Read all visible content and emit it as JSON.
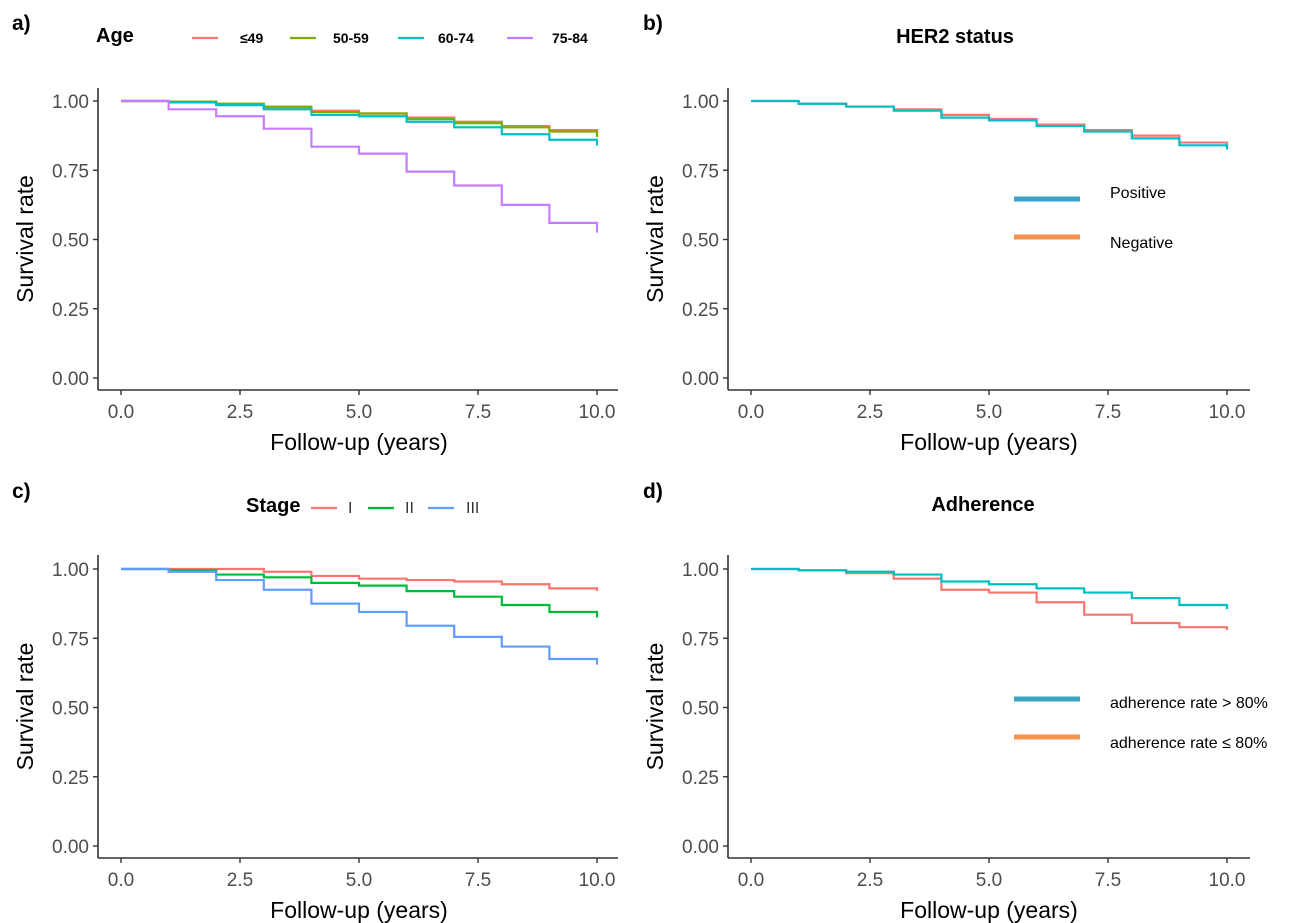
{
  "chart_data": [
    {
      "id": "a",
      "type": "line",
      "step": true,
      "panel_label": "a)",
      "title": "Age",
      "xlabel": "Follow-up (years)",
      "ylabel": "Survival rate",
      "xlim": [
        0,
        10
      ],
      "ylim": [
        0,
        1
      ],
      "xticks": [
        "0.0",
        "2.5",
        "5.0",
        "7.5",
        "10.0"
      ],
      "yticks": [
        "0.00",
        "0.25",
        "0.50",
        "0.75",
        "1.00"
      ],
      "grid": false,
      "legend_position": "top",
      "legend_style": "inline",
      "x": [
        0,
        1,
        2,
        3,
        4,
        5,
        6,
        7,
        8,
        9,
        10
      ],
      "series": [
        {
          "name": "≤49",
          "color": "#F8766D",
          "values": [
            1.0,
            0.995,
            0.99,
            0.98,
            0.965,
            0.955,
            0.94,
            0.925,
            0.91,
            0.895,
            0.88
          ]
        },
        {
          "name": "50-59",
          "color": "#7CAE00",
          "values": [
            1.0,
            0.998,
            0.99,
            0.978,
            0.96,
            0.955,
            0.935,
            0.92,
            0.905,
            0.89,
            0.87
          ]
        },
        {
          "name": "60-74",
          "color": "#00BFC4",
          "values": [
            1.0,
            0.995,
            0.985,
            0.97,
            0.95,
            0.945,
            0.925,
            0.905,
            0.88,
            0.86,
            0.84
          ]
        },
        {
          "name": "75-84",
          "color": "#C77CFF",
          "values": [
            1.0,
            0.97,
            0.945,
            0.9,
            0.835,
            0.81,
            0.745,
            0.695,
            0.625,
            0.56,
            0.525
          ]
        }
      ]
    },
    {
      "id": "b",
      "type": "line",
      "step": true,
      "panel_label": "b)",
      "title": "HER2 status",
      "xlabel": "Follow-up (years)",
      "ylabel": "Survival rate",
      "xlim": [
        0,
        10
      ],
      "ylim": [
        0,
        1
      ],
      "xticks": [
        "0.0",
        "2.5",
        "5.0",
        "7.5",
        "10.0"
      ],
      "yticks": [
        "0.00",
        "0.25",
        "0.50",
        "0.75",
        "1.00"
      ],
      "grid": false,
      "legend_position": "right",
      "legend_style": "block",
      "legend": [
        {
          "name": "Positive",
          "color": "#3BA3C3"
        },
        {
          "name": "Negative",
          "color": "#F4934B"
        }
      ],
      "x": [
        0,
        1,
        2,
        3,
        4,
        5,
        6,
        7,
        8,
        9,
        10
      ],
      "series": [
        {
          "name": "Negative",
          "color": "#F8766D",
          "values": [
            1.0,
            0.99,
            0.98,
            0.97,
            0.95,
            0.935,
            0.915,
            0.895,
            0.875,
            0.85,
            0.83
          ]
        },
        {
          "name": "Positive",
          "color": "#00BFC4",
          "values": [
            1.0,
            0.99,
            0.98,
            0.965,
            0.94,
            0.93,
            0.91,
            0.89,
            0.865,
            0.84,
            0.825
          ]
        }
      ]
    },
    {
      "id": "c",
      "type": "line",
      "step": true,
      "panel_label": "c)",
      "title": "Stage",
      "xlabel": "Follow-up (years)",
      "ylabel": "Survival rate",
      "xlim": [
        0,
        10
      ],
      "ylim": [
        0,
        1
      ],
      "xticks": [
        "0.0",
        "2.5",
        "5.0",
        "7.5",
        "10.0"
      ],
      "yticks": [
        "0.00",
        "0.25",
        "0.50",
        "0.75",
        "1.00"
      ],
      "grid": false,
      "legend_position": "top",
      "legend_style": "inline",
      "x": [
        0,
        1,
        2,
        3,
        4,
        5,
        6,
        7,
        8,
        9,
        10
      ],
      "series": [
        {
          "name": "I",
          "color": "#F8766D",
          "values": [
            1.0,
            1.0,
            1.0,
            0.99,
            0.975,
            0.965,
            0.96,
            0.955,
            0.945,
            0.93,
            0.92
          ]
        },
        {
          "name": "II",
          "color": "#00BA38",
          "values": [
            1.0,
            0.995,
            0.98,
            0.97,
            0.95,
            0.94,
            0.92,
            0.9,
            0.87,
            0.845,
            0.825
          ]
        },
        {
          "name": "III",
          "color": "#619CFF",
          "values": [
            1.0,
            0.99,
            0.96,
            0.925,
            0.875,
            0.845,
            0.795,
            0.755,
            0.72,
            0.675,
            0.655
          ]
        }
      ]
    },
    {
      "id": "d",
      "type": "line",
      "step": true,
      "panel_label": "d)",
      "title": "Adherence",
      "xlabel": "Follow-up (years)",
      "ylabel": "Survival rate",
      "xlim": [
        0,
        10
      ],
      "ylim": [
        0,
        1
      ],
      "xticks": [
        "0.0",
        "2.5",
        "5.0",
        "7.5",
        "10.0"
      ],
      "yticks": [
        "0.00",
        "0.25",
        "0.50",
        "0.75",
        "1.00"
      ],
      "grid": false,
      "legend_position": "right",
      "legend_style": "block",
      "legend": [
        {
          "name": "adherence rate > 80%",
          "color": "#3BA3C3"
        },
        {
          "name": "adherence rate ≤ 80%",
          "color": "#F4934B"
        }
      ],
      "x": [
        0,
        1,
        2,
        3,
        4,
        5,
        6,
        7,
        8,
        9,
        10
      ],
      "series": [
        {
          "name": "adherence rate ≤ 80%",
          "color": "#F8766D",
          "values": [
            1.0,
            0.995,
            0.985,
            0.965,
            0.925,
            0.915,
            0.88,
            0.835,
            0.805,
            0.79,
            0.78
          ]
        },
        {
          "name": "adherence rate > 80%",
          "color": "#00BFC4",
          "values": [
            1.0,
            0.995,
            0.99,
            0.98,
            0.955,
            0.945,
            0.93,
            0.915,
            0.895,
            0.87,
            0.855
          ]
        }
      ]
    }
  ]
}
